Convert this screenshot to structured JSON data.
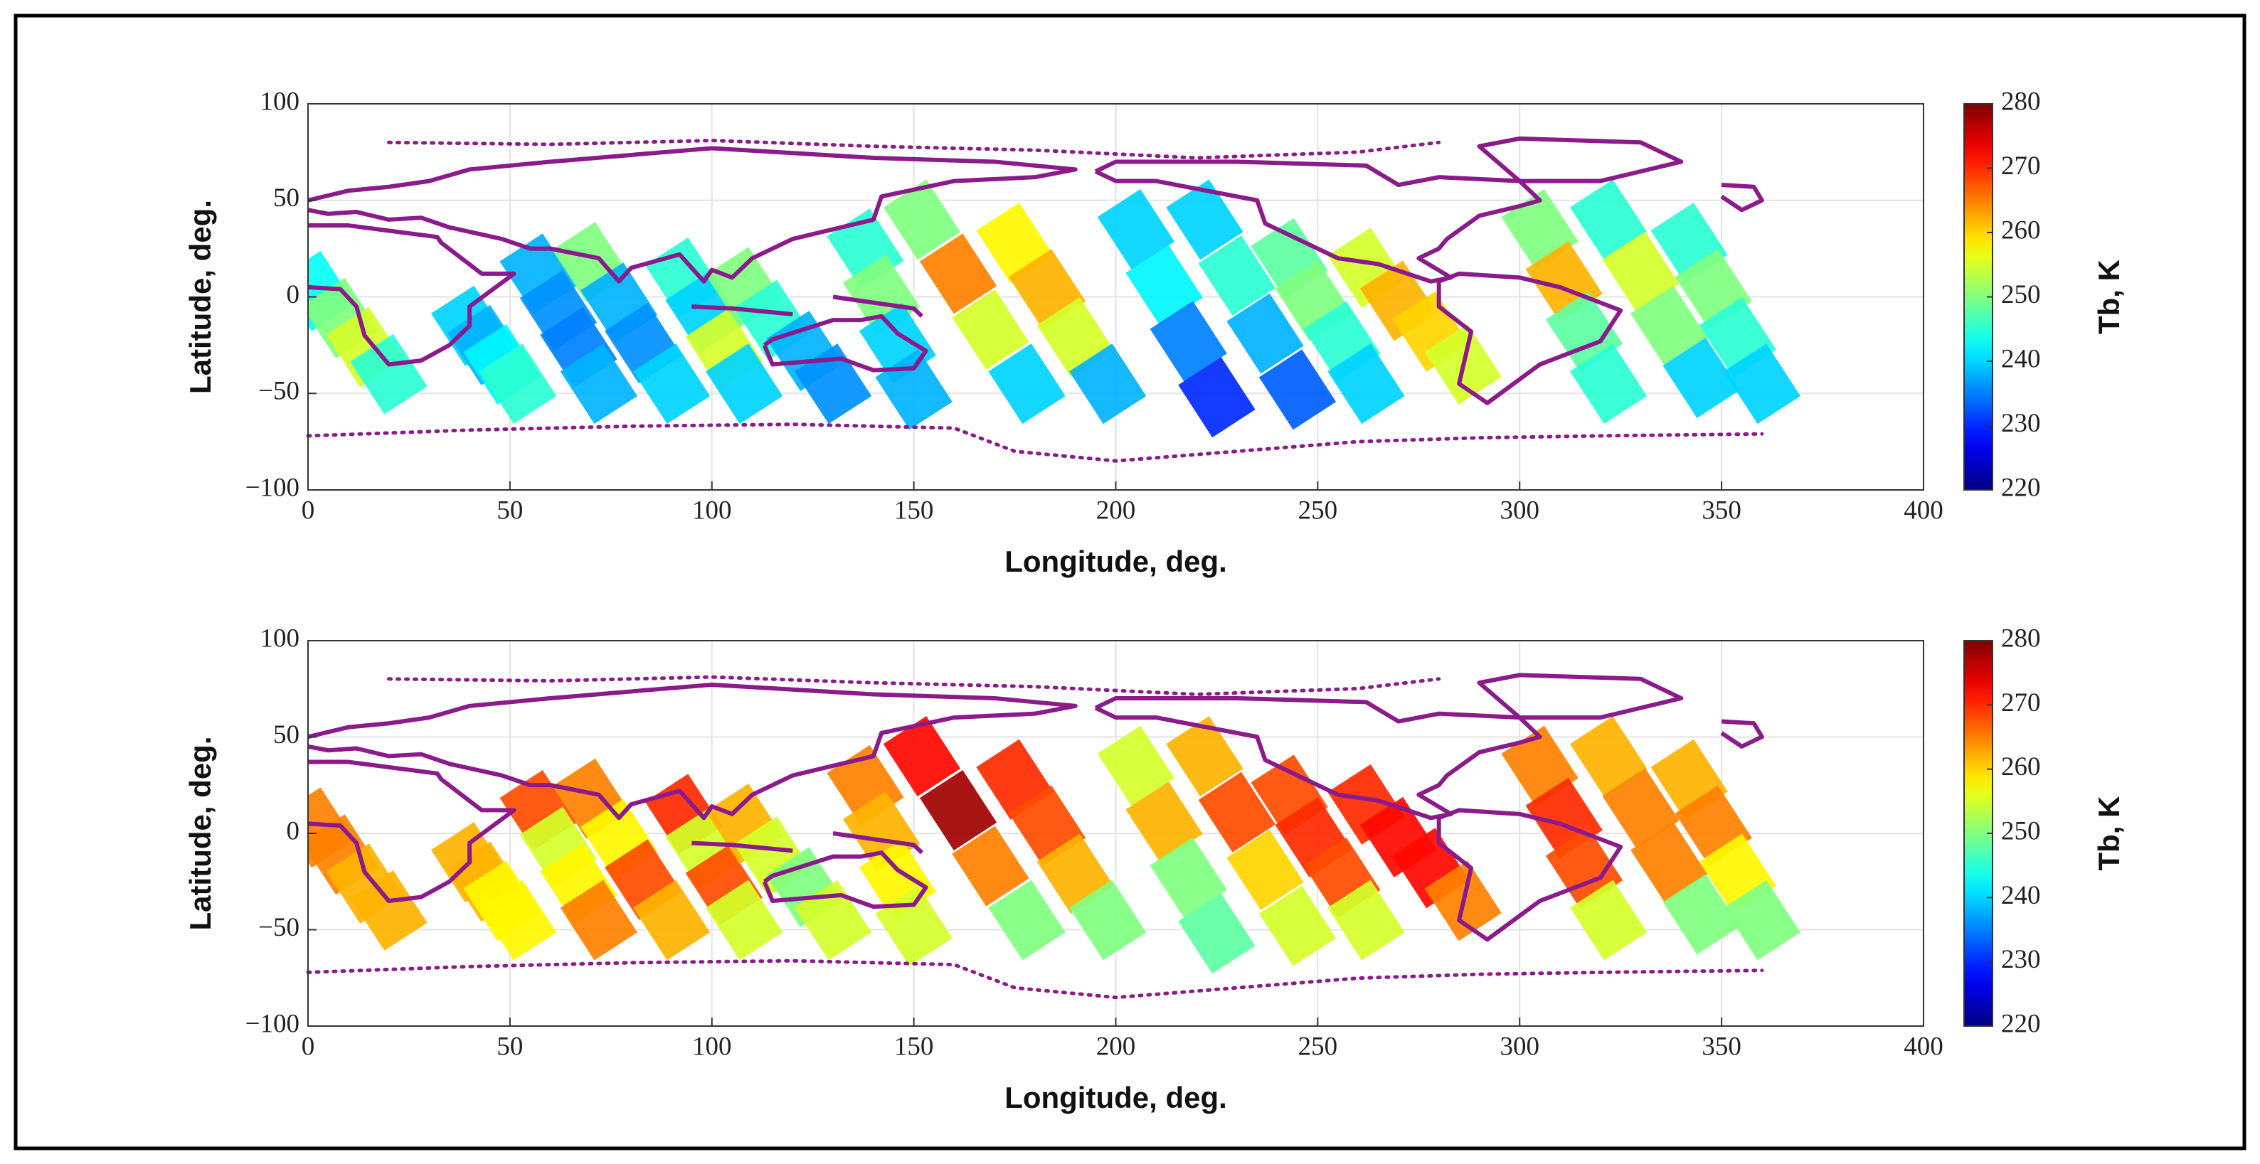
{
  "chart_data": [
    {
      "type": "scatter",
      "xlabel": "Longitude, deg.",
      "ylabel": "Latitude, deg.",
      "xlim": [
        0,
        400
      ],
      "ylim": [
        -100,
        100
      ],
      "xticks": [
        0,
        50,
        100,
        150,
        200,
        250,
        300,
        350,
        400
      ],
      "yticks": [
        {
          "value": -100,
          "label": "−100"
        },
        {
          "value": -50,
          "label": "−50"
        },
        0,
        50,
        100
      ],
      "grid": true,
      "colorbar": {
        "label": "Tb, K",
        "lim": [
          220,
          280
        ],
        "ticks": [
          220,
          230,
          240,
          250,
          260,
          270,
          280
        ],
        "colormap": "jet"
      },
      "x": [
        2,
        8,
        14,
        20,
        40,
        44,
        48,
        52,
        57,
        62,
        67,
        72,
        70,
        77,
        83,
        90,
        93,
        98,
        103,
        108,
        108,
        115,
        123,
        130,
        138,
        142,
        146,
        150,
        152,
        161,
        169,
        178,
        175,
        183,
        190,
        198,
        205,
        212,
        218,
        225,
        222,
        230,
        237,
        245,
        243,
        249,
        256,
        262,
        262,
        270,
        278,
        286,
        305,
        311,
        316,
        322,
        322,
        330,
        337,
        345,
        342,
        348,
        354,
        360
      ],
      "y": [
        3,
        -11,
        -26,
        -40,
        -15,
        -25,
        -35,
        -45,
        12,
        -7,
        -26,
        -45,
        18,
        -3,
        -24,
        -45,
        10,
        -8,
        -27,
        -45,
        5,
        -12,
        -28,
        -45,
        25,
        1,
        -24,
        -48,
        40,
        12,
        -17,
        -45,
        28,
        4,
        -21,
        -45,
        35,
        6,
        -23,
        -52,
        40,
        11,
        -19,
        -48,
        20,
        -2,
        -23,
        -45,
        15,
        -2,
        -18,
        -35,
        35,
        8,
        -18,
        -45,
        40,
        13,
        -15,
        -42,
        28,
        4,
        -21,
        -45
      ],
      "values": [
        243,
        250,
        255,
        245,
        240,
        238,
        242,
        245,
        238,
        236,
        235,
        238,
        250,
        238,
        236,
        240,
        245,
        240,
        255,
        240,
        250,
        245,
        238,
        236,
        245,
        250,
        240,
        238,
        250,
        265,
        255,
        240,
        258,
        262,
        255,
        238,
        240,
        242,
        235,
        230,
        240,
        245,
        238,
        233,
        248,
        250,
        245,
        240,
        255,
        262,
        260,
        255,
        250,
        262,
        248,
        245,
        245,
        255,
        250,
        240,
        245,
        250,
        245,
        240
      ]
    },
    {
      "type": "scatter",
      "xlabel": "Longitude, deg.",
      "ylabel": "Latitude, deg.",
      "xlim": [
        0,
        400
      ],
      "ylim": [
        -100,
        100
      ],
      "xticks": [
        0,
        50,
        100,
        150,
        200,
        250,
        300,
        350,
        400
      ],
      "yticks": [
        {
          "value": -100,
          "label": "−100"
        },
        {
          "value": -50,
          "label": "−50"
        },
        0,
        50,
        100
      ],
      "grid": true,
      "colorbar": {
        "label": "Tb, K",
        "lim": [
          220,
          280
        ],
        "ticks": [
          220,
          230,
          240,
          250,
          260,
          270,
          280
        ],
        "colormap": "jet"
      },
      "x": [
        2,
        8,
        14,
        20,
        40,
        44,
        48,
        52,
        57,
        62,
        67,
        72,
        70,
        77,
        83,
        90,
        93,
        98,
        103,
        108,
        108,
        115,
        123,
        130,
        138,
        142,
        146,
        150,
        152,
        161,
        169,
        178,
        175,
        183,
        190,
        198,
        205,
        212,
        218,
        225,
        222,
        230,
        237,
        245,
        243,
        249,
        256,
        262,
        262,
        270,
        278,
        286,
        305,
        311,
        316,
        322,
        322,
        330,
        337,
        345,
        342,
        348,
        354,
        360
      ],
      "y": [
        3,
        -11,
        -26,
        -40,
        -15,
        -25,
        -35,
        -45,
        12,
        -7,
        -26,
        -45,
        18,
        -3,
        -24,
        -45,
        10,
        -8,
        -27,
        -45,
        5,
        -12,
        -28,
        -45,
        25,
        1,
        -24,
        -48,
        40,
        12,
        -17,
        -45,
        28,
        4,
        -21,
        -45,
        35,
        6,
        -23,
        -52,
        40,
        11,
        -19,
        -48,
        20,
        -2,
        -23,
        -45,
        15,
        -2,
        -18,
        -35,
        35,
        8,
        -18,
        -45,
        40,
        13,
        -15,
        -42,
        28,
        4,
        -21,
        -45
      ],
      "values": [
        265,
        265,
        262,
        262,
        262,
        262,
        258,
        258,
        268,
        255,
        258,
        265,
        265,
        258,
        268,
        262,
        270,
        255,
        268,
        255,
        262,
        255,
        250,
        255,
        265,
        262,
        258,
        255,
        272,
        278,
        265,
        250,
        270,
        268,
        262,
        250,
        255,
        262,
        250,
        248,
        262,
        268,
        260,
        255,
        268,
        270,
        268,
        255,
        270,
        272,
        272,
        265,
        265,
        270,
        268,
        255,
        262,
        265,
        265,
        250,
        262,
        265,
        258,
        250
      ]
    }
  ]
}
